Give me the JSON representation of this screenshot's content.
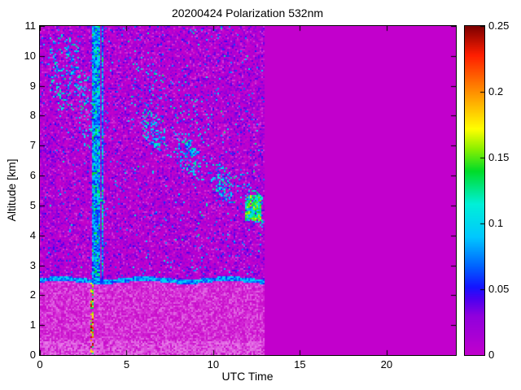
{
  "figure": {
    "kind": "lidar-quicklook-plot",
    "background": "#ffffff"
  },
  "chart_data": {
    "type": "heatmap",
    "title": "20200424 Polarization 532nm",
    "xlabel": "UTC Time",
    "ylabel": "Altitude [km]",
    "xlim": [
      0,
      24
    ],
    "ylim": [
      0,
      11
    ],
    "xticks": [
      0,
      5,
      10,
      15,
      20
    ],
    "xtick_labels": [
      "0",
      "5",
      "10",
      "15",
      "20"
    ],
    "yticks": [
      0,
      1,
      2,
      3,
      4,
      5,
      6,
      7,
      8,
      9,
      10,
      11
    ],
    "ytick_labels": [
      "0",
      "1",
      "2",
      "3",
      "4",
      "5",
      "6",
      "7",
      "8",
      "9",
      "10",
      "11"
    ],
    "grid": false,
    "legend": "none",
    "colorbar": {
      "position": "right",
      "range": [
        0,
        0.25
      ],
      "ticks": [
        0,
        0.05,
        0.1,
        0.15,
        0.2,
        0.25
      ],
      "tick_labels": [
        "0",
        "0.05",
        "0.1",
        "0.15",
        "0.2",
        "0.25"
      ],
      "stops": [
        [
          0.0,
          "#c200cc"
        ],
        [
          0.03,
          "#9000dd"
        ],
        [
          0.043,
          "#4b00f0"
        ],
        [
          0.052,
          "#1414ff"
        ],
        [
          0.068,
          "#0064ff"
        ],
        [
          0.09,
          "#00c8ff"
        ],
        [
          0.115,
          "#00f0d8"
        ],
        [
          0.14,
          "#00dc28"
        ],
        [
          0.157,
          "#8cf000"
        ],
        [
          0.172,
          "#ffff00"
        ],
        [
          0.2,
          "#ff9000"
        ],
        [
          0.228,
          "#ff1e00"
        ],
        [
          0.25,
          "#7d0000"
        ]
      ]
    },
    "noise_seed": 20200424,
    "features": {
      "no_data_region": {
        "t_start": 13.0,
        "t_end": 24,
        "value": 0
      },
      "background_noise": {
        "t_range": [
          0,
          13
        ],
        "alt_range": [
          0,
          11
        ],
        "value_range": [
          0,
          0.05
        ]
      },
      "boundary_layer": {
        "t_range": [
          0,
          13
        ],
        "alt_top": 2.5,
        "appearance": "bright pink speckle"
      },
      "boundary_layer_top_line": {
        "t_range": [
          0,
          13
        ],
        "alt": 2.5,
        "value_range": [
          0.05,
          0.11
        ]
      },
      "calibration_stripes": {
        "t_positions": [
          3.1,
          3.27,
          3.44,
          3.6
        ],
        "alt_range": [
          2.5,
          11
        ],
        "value_range": [
          0.05,
          0.15
        ]
      },
      "ground_hot_stripe": {
        "t": 2.97,
        "alt_range": [
          0,
          2.5
        ],
        "value_range": [
          0.12,
          0.25
        ]
      },
      "cloud_patch_upper_left": {
        "t_range": [
          0.6,
          2.3
        ],
        "alt_range": [
          8.2,
          10.65
        ],
        "value_range": [
          0.05,
          0.13
        ]
      },
      "cloud_patch_left": {
        "t_range": [
          2.25,
          3.35
        ],
        "alt_range": [
          6.9,
          9.6
        ],
        "value_range": [
          0.05,
          0.13
        ]
      },
      "descending_aerosol_band": {
        "t_range": [
          5.3,
          12.85
        ],
        "alt_start": 8.05,
        "alt_end": 4.8,
        "half_width_km": 0.55,
        "value_range": [
          0.05,
          0.14
        ]
      },
      "dense_band_terminus": {
        "t_range": [
          11.85,
          12.8
        ],
        "alt_range": [
          4.5,
          5.35
        ],
        "value_range": [
          0.08,
          0.17
        ]
      },
      "dark_purple_clump": {
        "t_range": [
          0.1,
          1.0
        ],
        "alt_range": [
          4.3,
          7.2
        ],
        "value_range": [
          0.01,
          0.04
        ]
      }
    }
  }
}
